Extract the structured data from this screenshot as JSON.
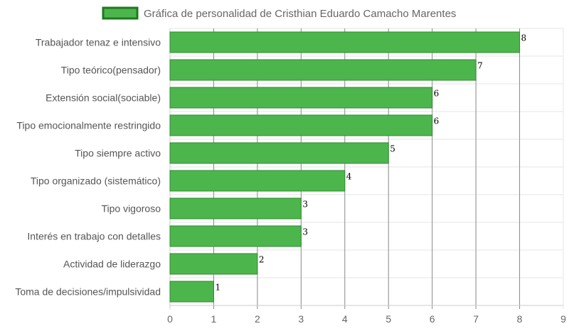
{
  "chart_data": {
    "type": "bar",
    "orientation": "horizontal",
    "series": [
      {
        "name": "Gráfica de personalidad de Cristhian Eduardo Camacho Marentes",
        "values": [
          8,
          7,
          6,
          6,
          5,
          4,
          3,
          3,
          2,
          1
        ]
      }
    ],
    "categories": [
      "Trabajador tenaz e intensivo",
      "Tipo teórico(pensador)",
      "Extensión social(sociable)",
      "Tipo emocionalmente restringido",
      "Tipo siempre activo",
      "Tipo organizado (sistemático)",
      "Tipo vigoroso",
      "Interés en trabajo con detalles",
      "Actividad de liderazgo",
      "Toma de decisiones/impulsividad"
    ],
    "xlim": [
      0,
      9
    ],
    "x_ticks": [
      0,
      1,
      2,
      3,
      4,
      5,
      6,
      7,
      8,
      9
    ],
    "grid": true,
    "legend_position": "top",
    "colors": {
      "bar_fill": "#4cb64c",
      "bar_border": "#2e8b2e",
      "legend_border": "#1e7a1e",
      "grid": "#e6e6e6",
      "grid_dark": "#888888"
    }
  }
}
